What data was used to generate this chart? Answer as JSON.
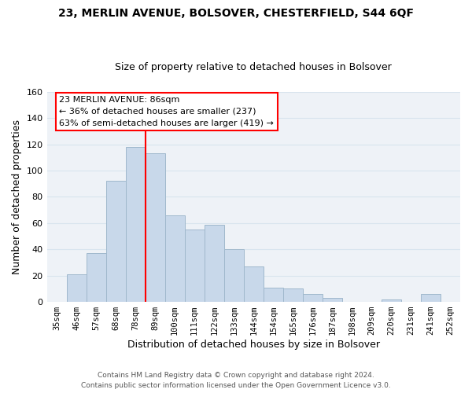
{
  "title1": "23, MERLIN AVENUE, BOLSOVER, CHESTERFIELD, S44 6QF",
  "title2": "Size of property relative to detached houses in Bolsover",
  "xlabel": "Distribution of detached houses by size in Bolsover",
  "ylabel": "Number of detached properties",
  "bar_color": "#c8d8ea",
  "bar_edge_color": "#a0b8cc",
  "categories": [
    "35sqm",
    "46sqm",
    "57sqm",
    "68sqm",
    "78sqm",
    "89sqm",
    "100sqm",
    "111sqm",
    "122sqm",
    "133sqm",
    "144sqm",
    "154sqm",
    "165sqm",
    "176sqm",
    "187sqm",
    "198sqm",
    "209sqm",
    "220sqm",
    "231sqm",
    "241sqm",
    "252sqm"
  ],
  "values": [
    0,
    21,
    37,
    92,
    118,
    113,
    66,
    55,
    59,
    40,
    27,
    11,
    10,
    6,
    3,
    0,
    0,
    2,
    0,
    6,
    0
  ],
  "ylim": [
    0,
    160
  ],
  "yticks": [
    0,
    20,
    40,
    60,
    80,
    100,
    120,
    140,
    160
  ],
  "marker_bin_index": 4,
  "annotation_line1": "23 MERLIN AVENUE: 86sqm",
  "annotation_line2": "← 36% of detached houses are smaller (237)",
  "annotation_line3": "63% of semi-detached houses are larger (419) →",
  "footer1": "Contains HM Land Registry data © Crown copyright and database right 2024.",
  "footer2": "Contains public sector information licensed under the Open Government Licence v3.0.",
  "grid_color": "#d8e4ee",
  "bg_color": "#eef2f7"
}
